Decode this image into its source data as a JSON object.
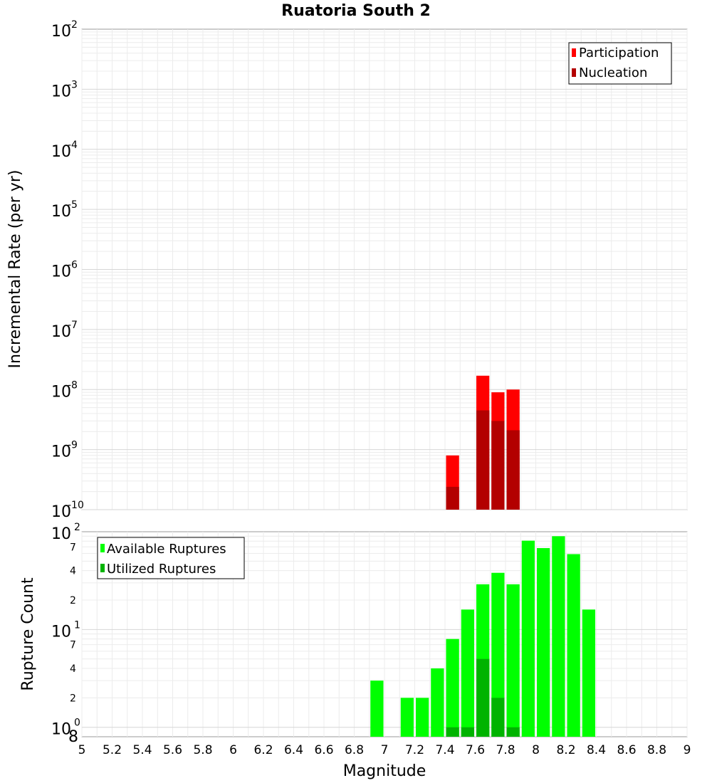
{
  "chart_data": [
    {
      "type": "bar",
      "title": "Ruatoria South 2",
      "xlabel": "",
      "ylabel": "Incremental Rate (per yr)",
      "yscale": "log",
      "ylim": [
        1e-10,
        0.01
      ],
      "xlim": [
        5,
        9
      ],
      "grid": true,
      "legend_position": "top-right",
      "series": [
        {
          "name": "Participation",
          "color": "#ff0000",
          "x": [
            7.45,
            7.65,
            7.75,
            7.85
          ],
          "values": [
            8e-10,
            1.7e-08,
            9e-09,
            1e-08
          ]
        },
        {
          "name": "Nucleation",
          "color": "#b30000",
          "x": [
            7.45,
            7.65,
            7.75,
            7.85
          ],
          "values": [
            2.4e-10,
            4.5e-09,
            3e-09,
            2.1e-09
          ]
        }
      ]
    },
    {
      "type": "bar",
      "title": "",
      "xlabel": "Magnitude",
      "ylabel": "Rupture Count",
      "yscale": "log",
      "ylim": [
        0.8,
        100
      ],
      "xlim": [
        5,
        9
      ],
      "grid": true,
      "legend_position": "top-left",
      "x_ticks": [
        "5",
        "5.2",
        "5.4",
        "5.6",
        "5.8",
        "6",
        "6.2",
        "6.4",
        "6.6",
        "6.8",
        "7",
        "7.2",
        "7.4",
        "7.6",
        "7.8",
        "8",
        "8.2",
        "8.4",
        "8.6",
        "8.8",
        "9"
      ],
      "series": [
        {
          "name": "Available Ruptures",
          "color": "#00ff00",
          "x": [
            6.95,
            7.15,
            7.25,
            7.35,
            7.45,
            7.55,
            7.65,
            7.75,
            7.85,
            7.95,
            8.05,
            8.15,
            8.25,
            8.35
          ],
          "values": [
            3,
            2,
            2,
            4,
            8,
            16,
            29,
            38,
            29,
            81,
            68,
            90,
            59,
            16
          ]
        },
        {
          "name": "Utilized Ruptures",
          "color": "#00b300",
          "x": [
            7.45,
            7.55,
            7.65,
            7.75,
            7.85
          ],
          "values": [
            1,
            1,
            5,
            2,
            1
          ]
        }
      ]
    }
  ]
}
